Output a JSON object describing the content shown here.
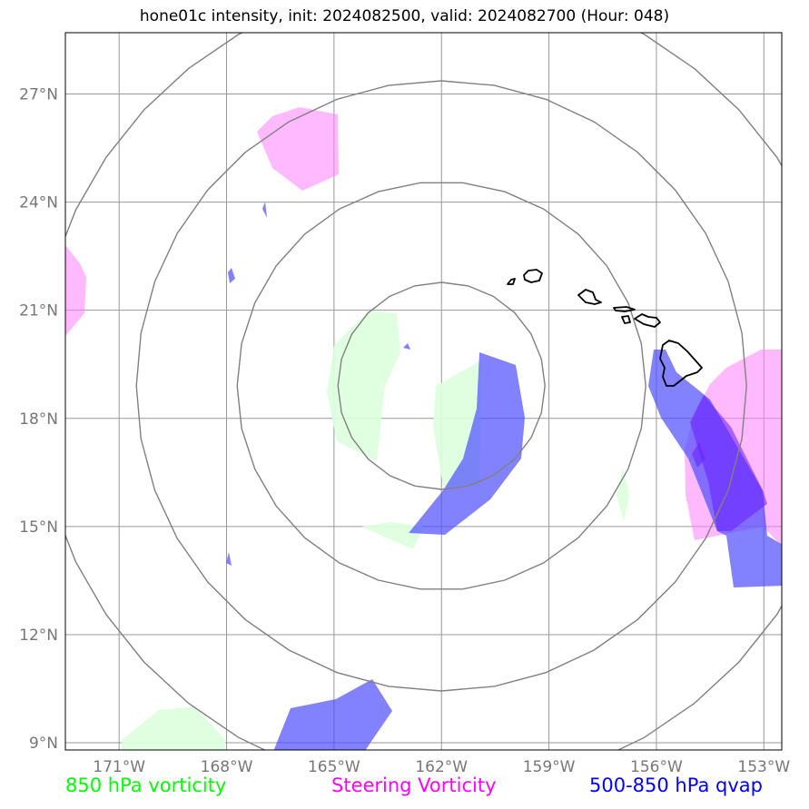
{
  "title": "hone01c intensity, init: 2024082500, valid: 2024082700 (Hour: 048)",
  "map": {
    "lon_range": [
      -172.5,
      -152.5
    ],
    "lat_range": [
      8.8,
      28.7
    ],
    "lon_ticks": [
      {
        "value": -171,
        "label": "171°W"
      },
      {
        "value": -168,
        "label": "168°W"
      },
      {
        "value": -165,
        "label": "165°W"
      },
      {
        "value": -162,
        "label": "162°W"
      },
      {
        "value": -159,
        "label": "159°W"
      },
      {
        "value": -156,
        "label": "156°W"
      },
      {
        "value": -153,
        "label": "153°W"
      }
    ],
    "lat_ticks": [
      {
        "value": 27,
        "label": "27°N"
      },
      {
        "value": 24,
        "label": "24°N"
      },
      {
        "value": 21,
        "label": "21°N"
      },
      {
        "value": 18,
        "label": "18°N"
      },
      {
        "value": 15,
        "label": "15°N"
      },
      {
        "value": 12,
        "label": "12°N"
      },
      {
        "value": 9,
        "label": "9°N"
      }
    ],
    "grid": true,
    "range_rings": {
      "center": [
        -162,
        18.9
      ],
      "count": 4
    },
    "colors": {
      "vorticity_850": "#00ff00",
      "steering_vorticity": "#ff00ff",
      "qvap_500_850": "#0000ff",
      "rings": "#808080",
      "grid": "#999999",
      "coastline": "#000000"
    }
  },
  "legend": {
    "vorticity_850": "850 hPa vorticity",
    "steering_vorticity": "Steering Vorticity",
    "qvap": "500-850 hPa qvap"
  }
}
